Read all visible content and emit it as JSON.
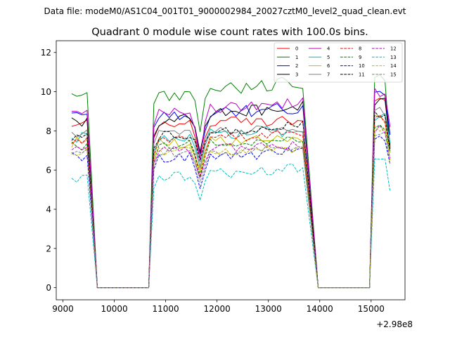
{
  "chart_data": {
    "type": "line",
    "suptitle": "Data file: modeM0/AS1C04_001T01_9000002984_20027cztM0_level2_quad_clean.evt",
    "title": "Quadrant 0 module wise count rates with 100.0s bins.",
    "xlabel": "",
    "ylabel": "",
    "x_offset_label": "+2.98e8",
    "xlim": [
      8870,
      15660
    ],
    "ylim": [
      -0.62,
      12.6
    ],
    "xticks": [
      9000,
      10000,
      11000,
      12000,
      13000,
      14000,
      15000
    ],
    "yticks": [
      0,
      2,
      4,
      6,
      8,
      10,
      12
    ],
    "xtick_labels": [
      "9000",
      "10000",
      "11000",
      "12000",
      "13000",
      "14000",
      "15000"
    ],
    "ytick_labels": [
      "0",
      "2",
      "4",
      "6",
      "8",
      "10",
      "12"
    ],
    "grid": false,
    "legend_position": "top-right",
    "legend_columns": 4,
    "segments": [
      {
        "start": 9170,
        "n": 4,
        "gap_zeros": [
          9670,
          10670
        ]
      },
      {
        "start": 10770,
        "n": 30,
        "gap_zeros": [
          13970,
          14970
        ]
      },
      {
        "start": 15070,
        "n": 4
      }
    ],
    "series": [
      {
        "name": "0",
        "color": "#ff0000",
        "style": "solid",
        "base": 8.4,
        "depth": 1.9,
        "amp": 0.25,
        "trend": 0.1,
        "end": 7.3
      },
      {
        "name": "1",
        "color": "#008000",
        "style": "solid",
        "base": 9.8,
        "depth": 2.1,
        "amp": 0.35,
        "trend": 0.7,
        "end": 7.1
      },
      {
        "name": "2",
        "color": "#0000ff",
        "style": "solid",
        "base": 8.7,
        "depth": 2.2,
        "amp": 0.3,
        "trend": 0.5,
        "end": 7.8
      },
      {
        "name": "3",
        "color": "#000000",
        "style": "solid",
        "base": 8.5,
        "depth": 2.0,
        "amp": 0.3,
        "trend": 0.8,
        "end": 7.2
      },
      {
        "name": "4",
        "color": "#bf00bf",
        "style": "solid",
        "base": 8.9,
        "depth": 2.4,
        "amp": 0.3,
        "trend": 0.5,
        "end": 8.2
      },
      {
        "name": "5",
        "color": "#00bfbf",
        "style": "solid",
        "base": 7.7,
        "depth": 1.8,
        "amp": 0.3,
        "trend": 0.3,
        "end": 7.4
      },
      {
        "name": "6",
        "color": "#bfbf00",
        "style": "solid",
        "base": 7.4,
        "depth": 1.6,
        "amp": 0.3,
        "trend": 0.1,
        "end": 6.9
      },
      {
        "name": "7",
        "color": "#808080",
        "style": "solid",
        "base": 7.9,
        "depth": 1.9,
        "amp": 0.25,
        "trend": 0.2,
        "end": 7.1
      },
      {
        "name": "8",
        "color": "#ff0000",
        "style": "dashed",
        "base": 7.5,
        "depth": 1.7,
        "amp": 0.25,
        "trend": 0.3,
        "end": 7.0
      },
      {
        "name": "9",
        "color": "#008000",
        "style": "dashed",
        "base": 7.2,
        "depth": 1.8,
        "amp": 0.25,
        "trend": 0.4,
        "end": 6.9
      },
      {
        "name": "10",
        "color": "#0000ff",
        "style": "dashed",
        "base": 6.6,
        "depth": 1.8,
        "amp": 0.3,
        "trend": 0.3,
        "end": 6.3
      },
      {
        "name": "11",
        "color": "#000000",
        "style": "dashed",
        "base": 7.7,
        "depth": 1.6,
        "amp": 0.25,
        "trend": 0.6,
        "end": 7.0
      },
      {
        "name": "12",
        "color": "#bf00bf",
        "style": "dashed",
        "base": 7.0,
        "depth": 1.5,
        "amp": 0.25,
        "trend": 0.3,
        "end": 6.6
      },
      {
        "name": "13",
        "color": "#00bfbf",
        "style": "dashed",
        "base": 5.6,
        "depth": 1.3,
        "amp": 0.25,
        "trend": 0.5,
        "end": 4.9
      },
      {
        "name": "14",
        "color": "#bfbf00",
        "style": "dashed",
        "base": 7.0,
        "depth": 1.4,
        "amp": 0.3,
        "trend": 0.1,
        "end": 6.5
      },
      {
        "name": "15",
        "color": "#808080",
        "style": "dashed",
        "base": 6.9,
        "depth": 1.5,
        "amp": 0.25,
        "trend": 0.2,
        "end": 6.3
      }
    ]
  }
}
